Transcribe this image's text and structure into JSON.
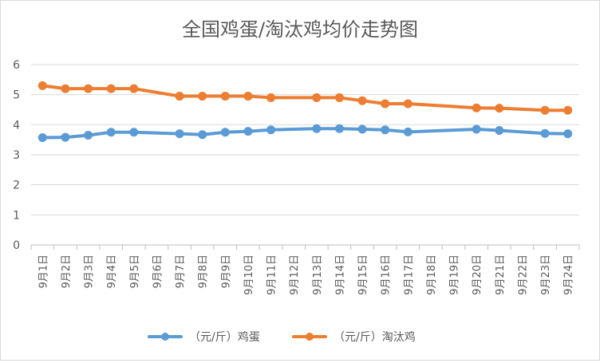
{
  "chart_data": {
    "type": "line",
    "title": "全国鸡蛋/淘汰鸡均价走势图",
    "xlabel": "",
    "ylabel": "",
    "ylim": [
      0,
      6
    ],
    "yticks": [
      "0",
      "1",
      "2",
      "3",
      "4",
      "5",
      "6"
    ],
    "grid": true,
    "legend_position": "bottom",
    "categories": [
      "9月1日",
      "9月2日",
      "9月3日",
      "9月4日",
      "9月5日",
      "9月6日",
      "9月7日",
      "9月8日",
      "9月9日",
      "9月10日",
      "9月11日",
      "9月12日",
      "9月13日",
      "9月14日",
      "9月15日",
      "9月16日",
      "9月17日",
      "9月18日",
      "9月19日",
      "9月20日",
      "9月21日",
      "9月22日",
      "9月23日",
      "9月24日"
    ],
    "series": [
      {
        "name": "（元/斤）鸡蛋",
        "color": "#5b9bd5",
        "values": [
          3.57,
          3.58,
          3.65,
          3.75,
          3.75,
          null,
          3.7,
          3.67,
          3.75,
          3.78,
          3.83,
          null,
          3.87,
          3.87,
          3.85,
          3.83,
          3.76,
          null,
          null,
          3.85,
          3.81,
          null,
          3.71,
          3.7
        ]
      },
      {
        "name": "（元/斤）淘汰鸡",
        "color": "#ed7d31",
        "values": [
          5.3,
          5.2,
          5.2,
          5.2,
          5.2,
          null,
          4.95,
          4.95,
          4.95,
          4.95,
          4.9,
          null,
          4.9,
          4.9,
          4.8,
          4.7,
          4.7,
          null,
          null,
          4.56,
          4.55,
          null,
          4.48,
          4.48
        ]
      }
    ]
  }
}
